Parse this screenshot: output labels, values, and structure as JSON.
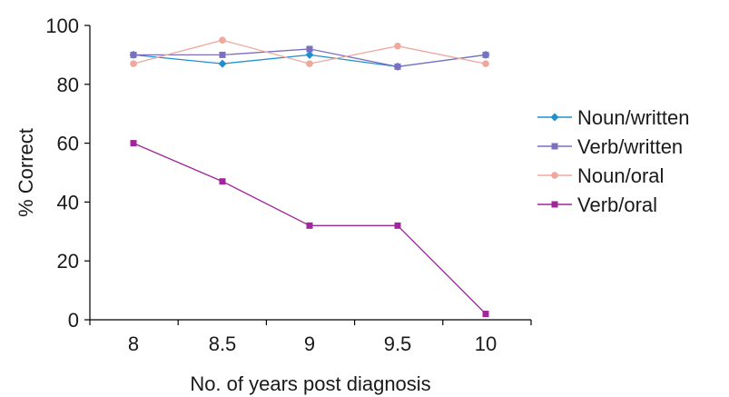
{
  "chart_data": {
    "type": "line",
    "title": "",
    "xlabel": "No. of years post diagnosis",
    "ylabel": "% Correct",
    "x": [
      "8",
      "8.5",
      "9",
      "9.5",
      "10"
    ],
    "ylim": [
      0,
      100
    ],
    "yticks": [
      "0",
      "20",
      "40",
      "60",
      "80",
      "100"
    ],
    "grid": false,
    "legend_position": "right",
    "series": [
      {
        "name": "Noun/written",
        "color": "#1f8fd0",
        "marker": "diamond",
        "values": [
          90,
          87,
          90,
          86,
          90
        ]
      },
      {
        "name": "Verb/written",
        "color": "#7a6fc0",
        "marker": "square",
        "values": [
          90,
          90,
          92,
          86,
          90
        ]
      },
      {
        "name": "Noun/oral",
        "color": "#f0a89c",
        "marker": "circle",
        "values": [
          87,
          95,
          87,
          93,
          87
        ]
      },
      {
        "name": "Verb/oral",
        "color": "#a0269a",
        "marker": "square",
        "values": [
          60,
          47,
          32,
          32,
          2
        ]
      }
    ]
  }
}
